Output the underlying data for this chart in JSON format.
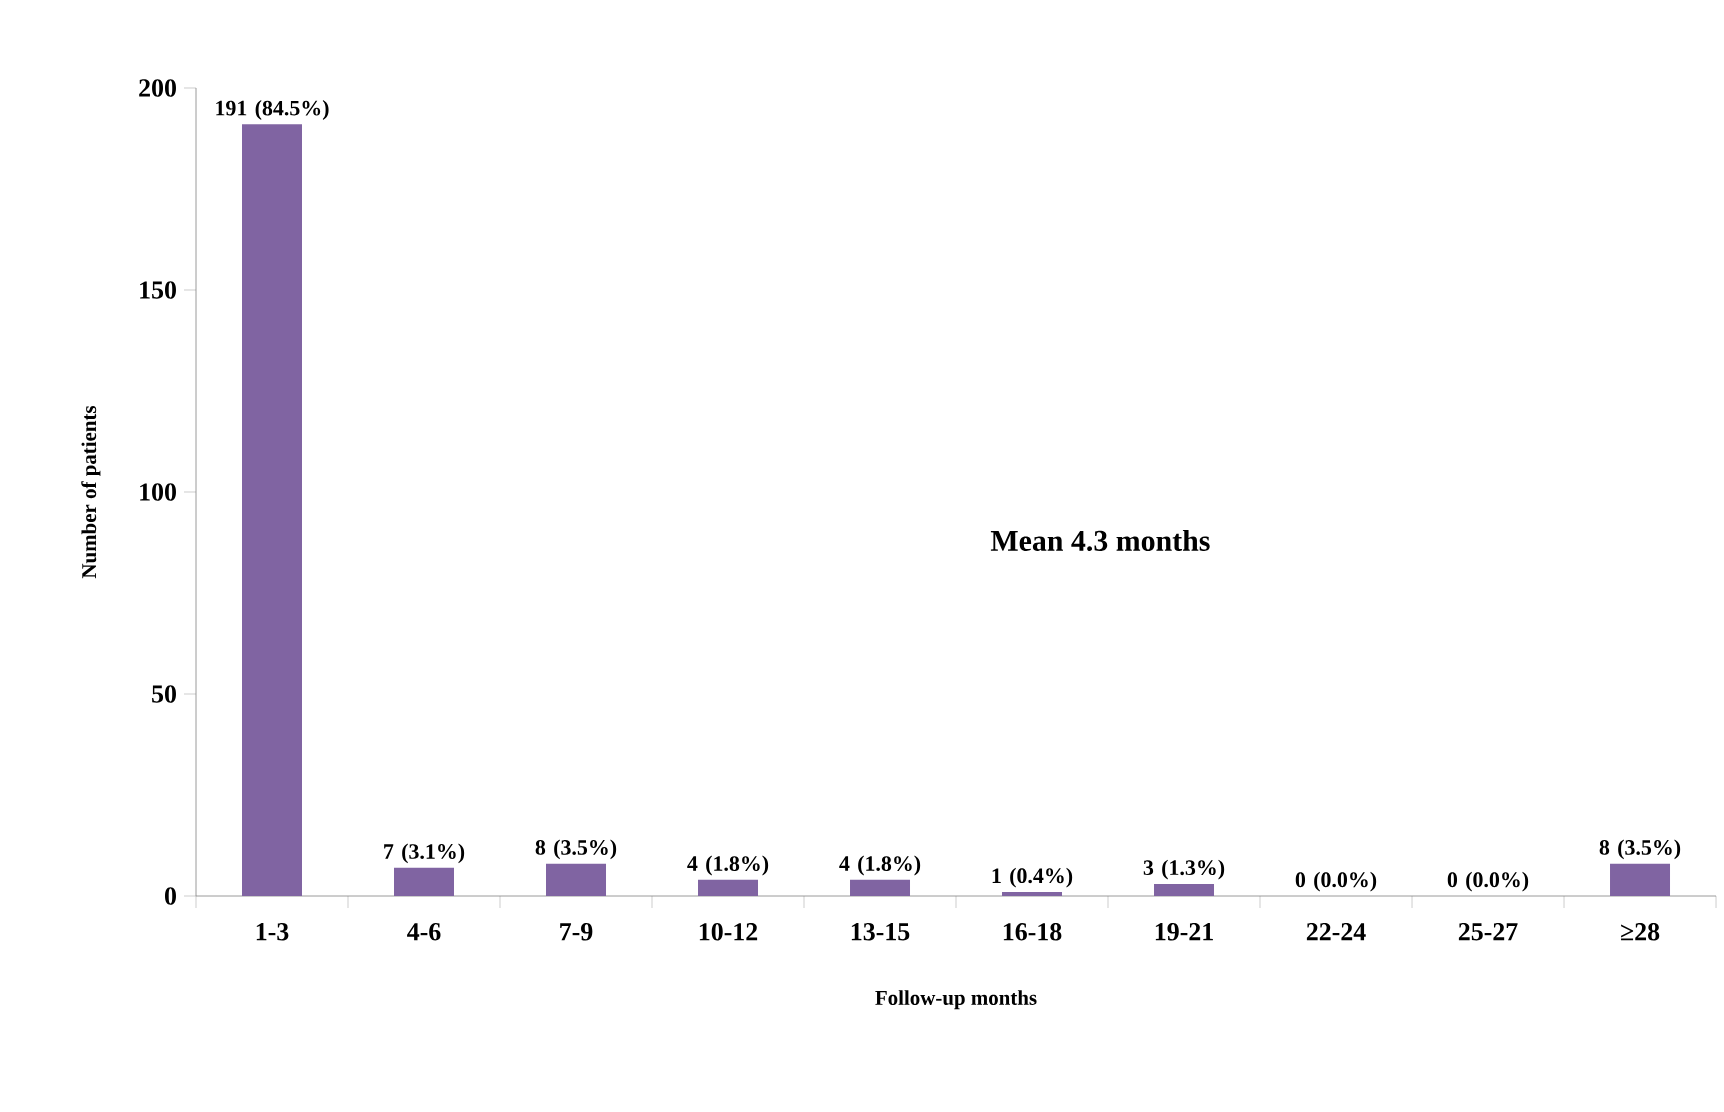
{
  "chart_data": {
    "type": "bar",
    "categories": [
      "1-3",
      "4-6",
      "7-9",
      "10-12",
      "13-15",
      "16-18",
      "19-21",
      "22-24",
      "25-27",
      "≥28"
    ],
    "values": [
      191,
      7,
      8,
      4,
      4,
      1,
      3,
      0,
      0,
      8
    ],
    "value_labels": [
      "191 (84.5%)",
      "7 (3.1%)",
      "8 (3.5%)",
      "4 (1.8%)",
      "4 (1.8%)",
      "1 (0.4%)",
      "3 (1.3%)",
      "0 (0.0%)",
      "0 (0.0%)",
      "8 (3.5%)"
    ],
    "color": "#8064a2",
    "ylim": [
      0,
      200
    ],
    "yticks": [
      0,
      50,
      100,
      150,
      200
    ],
    "xlabel": "Follow-up months",
    "ylabel": "Number of patients",
    "annotations": [
      "Mean 4.3 months"
    ]
  }
}
